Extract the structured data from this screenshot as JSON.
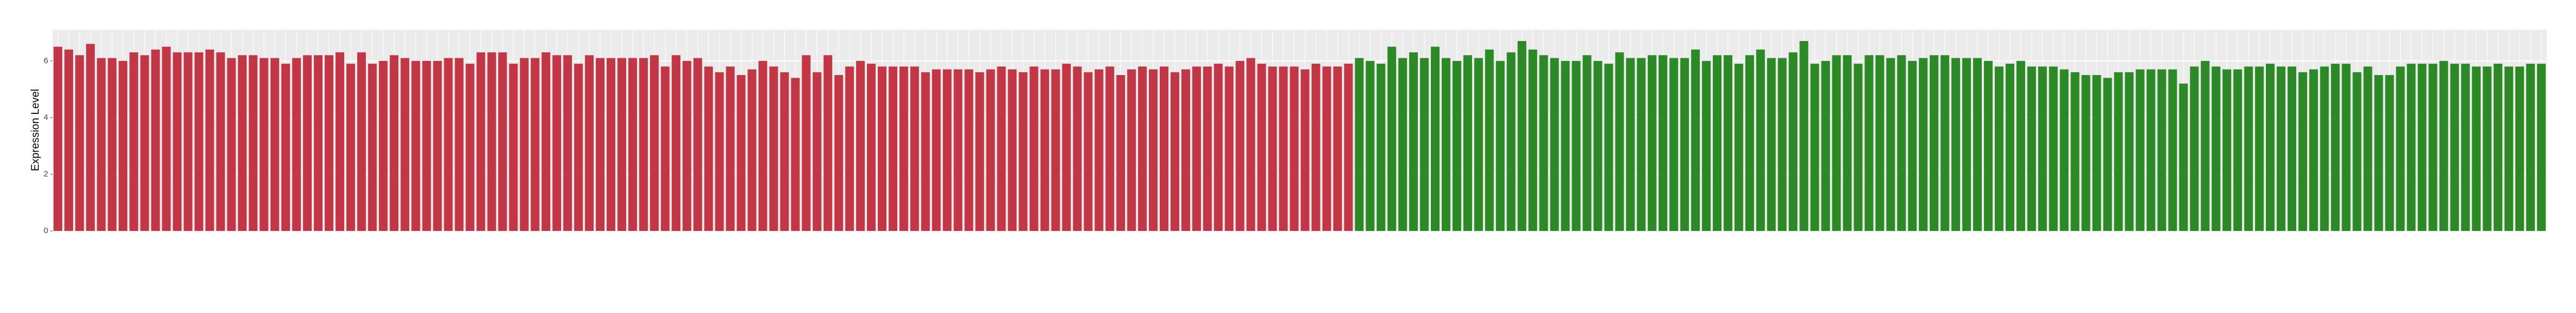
{
  "chart_data": {
    "type": "bar",
    "y_label": "Expression Level",
    "ylim": [
      0,
      7.1
    ],
    "yticks": [
      0,
      2,
      4,
      6
    ],
    "grid": true,
    "categories": [
      null,
      null,
      null,
      null,
      null,
      null,
      null,
      null,
      null,
      null,
      null,
      null,
      null,
      null,
      null,
      null,
      null,
      null,
      null,
      null,
      null,
      null,
      null,
      null,
      null,
      null,
      null,
      null,
      null,
      null,
      null,
      null,
      null,
      null,
      null,
      null,
      null,
      null,
      null,
      null,
      null,
      null,
      null,
      null,
      null,
      null,
      null,
      null,
      null,
      null,
      null,
      null,
      null,
      null,
      null,
      null,
      null,
      null,
      null,
      null,
      null,
      null,
      null,
      null,
      null,
      null,
      null,
      null,
      null,
      null,
      null,
      null,
      null,
      null,
      null,
      null,
      null,
      null,
      null,
      null,
      null,
      null,
      null,
      null,
      null,
      null,
      null,
      null,
      null,
      null,
      null,
      null,
      null,
      null,
      null,
      null,
      null,
      null,
      null,
      null,
      null,
      null,
      null,
      null,
      null,
      null,
      null,
      null,
      null,
      null,
      null,
      null,
      null,
      null,
      null,
      null,
      null,
      null,
      null,
      null,
      null,
      null,
      null,
      null,
      null,
      null,
      null,
      null,
      null,
      null,
      null,
      null,
      null,
      null,
      null,
      null,
      null,
      null,
      null,
      null,
      null,
      null,
      null,
      null,
      null,
      null,
      null,
      null,
      null,
      null,
      null,
      null,
      null,
      null,
      null,
      null,
      null,
      null,
      null,
      null,
      null,
      null,
      null,
      null,
      null,
      null,
      null,
      null,
      null,
      null,
      null,
      null,
      null,
      null,
      null,
      null,
      null,
      null,
      null,
      null,
      null,
      null,
      null,
      null,
      null,
      null,
      null,
      null,
      null,
      null,
      null,
      null,
      null,
      null,
      null,
      null,
      null,
      null,
      null,
      null,
      null,
      null,
      null,
      null,
      null,
      null,
      null,
      null,
      null,
      null,
      null,
      null,
      null,
      null,
      null,
      null,
      null,
      null,
      null,
      null,
      null,
      null,
      null,
      null,
      null,
      null,
      null,
      null,
      null,
      null
    ],
    "series": [
      {
        "color": "#c23646",
        "values": [
          6.5,
          6.4,
          6.2,
          6.6,
          6.1,
          6.1,
          6.0,
          6.3,
          6.2,
          6.4,
          6.5,
          6.3,
          6.3,
          6.3,
          6.4,
          6.3,
          6.1,
          6.2,
          6.2,
          6.1,
          6.1,
          5.9,
          6.1,
          6.2,
          6.2,
          6.2,
          6.3,
          5.9,
          6.3,
          5.9,
          6.0,
          6.2,
          6.1,
          6.0,
          6.0,
          6.0,
          6.1,
          6.1,
          5.9,
          6.3,
          6.3,
          6.3,
          5.9,
          6.1,
          6.1,
          6.3,
          6.2,
          6.2,
          5.9,
          6.2,
          6.1,
          6.1,
          6.1,
          6.1,
          6.1,
          6.2,
          5.8,
          6.2,
          6.0,
          6.1,
          5.8,
          5.6,
          5.8,
          5.5,
          5.7,
          6.0,
          5.8,
          5.6,
          5.4,
          6.2,
          5.6,
          6.2,
          5.5,
          5.8,
          6.0,
          5.9,
          5.8,
          5.8,
          5.8,
          5.8,
          5.6,
          5.7,
          5.7,
          5.7,
          5.7,
          5.6,
          5.7,
          5.8,
          5.7,
          5.6,
          5.8,
          5.7,
          5.7,
          5.9,
          5.8,
          5.6,
          5.7,
          5.8,
          5.5,
          5.7,
          5.8,
          5.7,
          5.8,
          5.6,
          5.7,
          5.8,
          5.8,
          5.9,
          5.8,
          6.0,
          6.1,
          5.9,
          5.8,
          5.8,
          5.8,
          5.7,
          5.9,
          5.8,
          5.8,
          5.9,
          null,
          null,
          null,
          null,
          null,
          null,
          null,
          null,
          null,
          null,
          null,
          null,
          null,
          null,
          null,
          null,
          null,
          null,
          null,
          null,
          null,
          null,
          null,
          null,
          null,
          null,
          null,
          null,
          null,
          null,
          null,
          null,
          null,
          null,
          null,
          null,
          null,
          null,
          null,
          null,
          null,
          null,
          null,
          null,
          null,
          null,
          null,
          null,
          null,
          null,
          null,
          null,
          null,
          null,
          null,
          null,
          null,
          null,
          null,
          null,
          null,
          null,
          null,
          null,
          null,
          null,
          null,
          null,
          null,
          null,
          null,
          null,
          null,
          null,
          null,
          null,
          null,
          null,
          null,
          null,
          null,
          null,
          null,
          null,
          null,
          null,
          null,
          null,
          null,
          null,
          null,
          null,
          null,
          null,
          null,
          null,
          null,
          null,
          null,
          null,
          null,
          null,
          null,
          null,
          null,
          null,
          null,
          null,
          null,
          null
        ]
      },
      {
        "color": "#2b8a25",
        "values": [
          null,
          null,
          null,
          null,
          null,
          null,
          null,
          null,
          null,
          null,
          null,
          null,
          null,
          null,
          null,
          null,
          null,
          null,
          null,
          null,
          null,
          null,
          null,
          null,
          null,
          null,
          null,
          null,
          null,
          null,
          null,
          null,
          null,
          null,
          null,
          null,
          null,
          null,
          null,
          null,
          null,
          null,
          null,
          null,
          null,
          null,
          null,
          null,
          null,
          null,
          null,
          null,
          null,
          null,
          null,
          null,
          null,
          null,
          null,
          null,
          null,
          null,
          null,
          null,
          null,
          null,
          null,
          null,
          null,
          null,
          null,
          null,
          null,
          null,
          null,
          null,
          null,
          null,
          null,
          null,
          null,
          null,
          null,
          null,
          null,
          null,
          null,
          null,
          null,
          null,
          null,
          null,
          null,
          null,
          null,
          null,
          null,
          null,
          null,
          null,
          null,
          null,
          null,
          null,
          null,
          null,
          null,
          null,
          null,
          null,
          null,
          null,
          null,
          null,
          null,
          null,
          null,
          null,
          null,
          null,
          6.1,
          6.0,
          5.9,
          6.5,
          6.1,
          6.3,
          6.1,
          6.5,
          6.1,
          6.0,
          6.2,
          6.1,
          6.4,
          6.0,
          6.3,
          6.7,
          6.4,
          6.2,
          6.1,
          6.0,
          6.0,
          6.2,
          6.0,
          5.9,
          6.3,
          6.1,
          6.1,
          6.2,
          6.2,
          6.1,
          6.1,
          6.4,
          6.0,
          6.2,
          6.2,
          5.9,
          6.2,
          6.4,
          6.1,
          6.1,
          6.3,
          6.7,
          5.9,
          6.0,
          6.2,
          6.2,
          5.9,
          6.2,
          6.2,
          6.1,
          6.2,
          6.0,
          6.1,
          6.2,
          6.2,
          6.1,
          6.1,
          6.1,
          6.0,
          5.8,
          5.9,
          6.0,
          5.8,
          5.8,
          5.8,
          5.7,
          5.6,
          5.5,
          5.5,
          5.4,
          5.6,
          5.6,
          5.7,
          5.7,
          5.7,
          5.7,
          5.2,
          5.8,
          6.0,
          5.8,
          5.7,
          5.7,
          5.8,
          5.8,
          5.9,
          5.8,
          5.8,
          5.6,
          5.7,
          5.8,
          5.9,
          5.9,
          5.6,
          5.8,
          5.5,
          5.5,
          5.8,
          5.9,
          5.9,
          5.9,
          6.0,
          5.9,
          5.9,
          5.8,
          5.8,
          5.9,
          5.8,
          5.8,
          5.9,
          5.9
        ]
      }
    ]
  }
}
